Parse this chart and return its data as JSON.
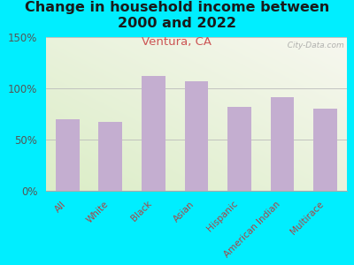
{
  "title": "Change in household income between\n2000 and 2022",
  "subtitle": "Ventura, CA",
  "categories": [
    "All",
    "White",
    "Black",
    "Asian",
    "Hispanic",
    "American Indian",
    "Multirace"
  ],
  "values": [
    70,
    67,
    112,
    107,
    82,
    91,
    80
  ],
  "bar_color": "#c4aed0",
  "background_outer": "#00eeff",
  "title_fontsize": 11.5,
  "subtitle_fontsize": 9.5,
  "subtitle_color": "#cc5555",
  "tick_label_color": "#aa4444",
  "ytick_color": "#555555",
  "ylim": [
    0,
    150
  ],
  "yticks": [
    0,
    50,
    100,
    150
  ],
  "watermark": "  City-Data.com"
}
